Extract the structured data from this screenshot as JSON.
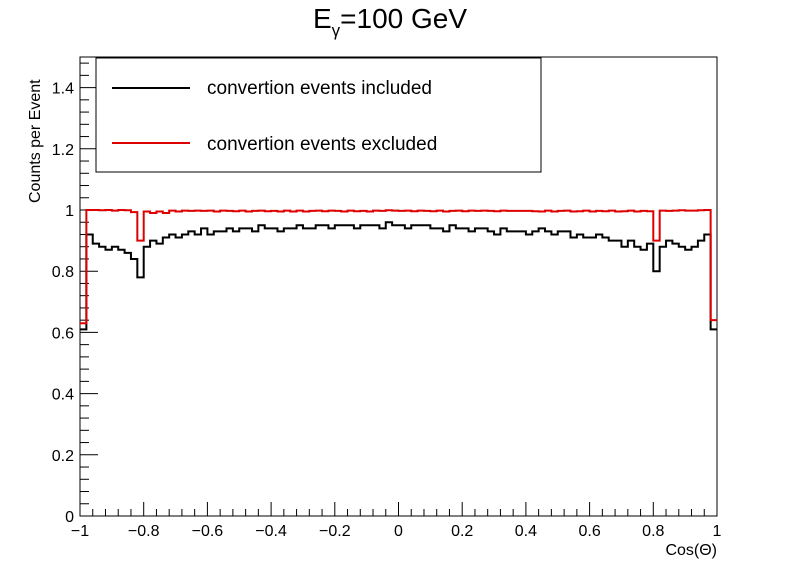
{
  "chart_data": {
    "type": "line",
    "title_main": "E",
    "title_sub": "γ",
    "title_rest": "=100 GeV",
    "xlabel": "Cos(Θ)",
    "ylabel": "Counts per Event",
    "xlim": [
      -1,
      1
    ],
    "ylim": [
      0,
      1.5
    ],
    "x_ticks": [
      "−1",
      "−0.8",
      "−0.6",
      "−0.4",
      "−0.2",
      "0",
      "0.2",
      "0.4",
      "0.6",
      "0.8",
      "1"
    ],
    "y_ticks": [
      "0",
      "0.2",
      "0.4",
      "0.6",
      "0.8",
      "1",
      "1.2",
      "1.4"
    ],
    "x_tick_values": [
      -1,
      -0.8,
      -0.6,
      -0.4,
      -0.2,
      0,
      0.2,
      0.4,
      0.6,
      0.8,
      1
    ],
    "y_tick_values": [
      0,
      0.2,
      0.4,
      0.6,
      0.8,
      1.0,
      1.2,
      1.4
    ],
    "bin_edges_start": -1,
    "bin_width": 0.02,
    "series": [
      {
        "name": "convertion events included",
        "color": "#000000",
        "values": [
          0.61,
          0.92,
          0.89,
          0.88,
          0.87,
          0.88,
          0.87,
          0.86,
          0.84,
          0.78,
          0.88,
          0.9,
          0.89,
          0.91,
          0.92,
          0.91,
          0.92,
          0.93,
          0.92,
          0.94,
          0.92,
          0.93,
          0.93,
          0.94,
          0.93,
          0.94,
          0.94,
          0.93,
          0.95,
          0.94,
          0.94,
          0.93,
          0.94,
          0.94,
          0.95,
          0.94,
          0.94,
          0.95,
          0.95,
          0.94,
          0.95,
          0.95,
          0.95,
          0.94,
          0.95,
          0.95,
          0.95,
          0.94,
          0.96,
          0.95,
          0.95,
          0.94,
          0.95,
          0.95,
          0.95,
          0.94,
          0.94,
          0.93,
          0.95,
          0.94,
          0.94,
          0.93,
          0.94,
          0.94,
          0.93,
          0.92,
          0.94,
          0.93,
          0.93,
          0.93,
          0.92,
          0.93,
          0.94,
          0.93,
          0.92,
          0.93,
          0.93,
          0.91,
          0.92,
          0.91,
          0.91,
          0.92,
          0.91,
          0.9,
          0.9,
          0.88,
          0.9,
          0.88,
          0.87,
          0.89,
          0.8,
          0.88,
          0.9,
          0.89,
          0.88,
          0.87,
          0.88,
          0.9,
          0.92,
          0.61
        ]
      },
      {
        "name": "convertion events excluded",
        "color": "#dd0000",
        "values": [
          0.63,
          1.0,
          1.0,
          0.999,
          1.0,
          0.998,
          1.0,
          0.999,
          0.993,
          0.9,
          0.995,
          0.99,
          0.995,
          0.99,
          0.998,
          0.995,
          0.998,
          0.997,
          0.998,
          0.997,
          0.998,
          0.995,
          0.998,
          0.997,
          0.996,
          0.998,
          0.995,
          0.997,
          0.998,
          0.996,
          0.997,
          0.995,
          0.998,
          0.995,
          0.998,
          0.995,
          0.997,
          0.998,
          0.996,
          0.998,
          0.997,
          0.995,
          0.998,
          0.996,
          0.997,
          0.995,
          0.998,
          0.997,
          0.999,
          0.998,
          0.997,
          0.998,
          0.996,
          0.998,
          0.997,
          0.996,
          0.998,
          0.995,
          0.997,
          0.998,
          0.996,
          0.998,
          0.997,
          0.998,
          0.997,
          0.996,
          0.998,
          0.997,
          0.997,
          0.997,
          0.997,
          0.996,
          0.995,
          0.998,
          0.995,
          0.997,
          0.998,
          0.995,
          0.996,
          0.998,
          0.995,
          0.997,
          0.996,
          0.998,
          0.995,
          0.996,
          0.998,
          0.995,
          0.997,
          0.996,
          0.9,
          0.998,
          0.997,
          0.998,
          0.999,
          0.998,
          0.998,
          0.999,
          1.0,
          0.64
        ]
      }
    ],
    "legend_placement": "top-left",
    "grid": false
  }
}
